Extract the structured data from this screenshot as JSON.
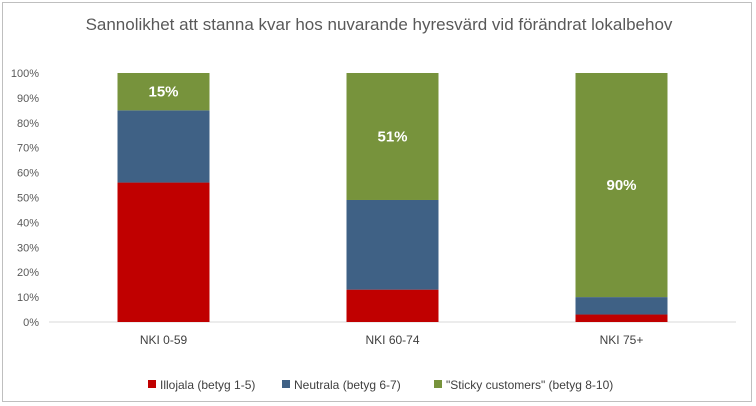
{
  "chart_data": {
    "type": "bar",
    "stacked": true,
    "title": "Sannolikhet att stanna kvar hos nuvarande hyresvärd vid förändrat lokalbehov",
    "categories": [
      "NKI 0-59",
      "NKI 60-74",
      "NKI 75+"
    ],
    "series": [
      {
        "name": "Illojala (betyg 1-5)",
        "color": "#c00000",
        "values": [
          56,
          13,
          3
        ]
      },
      {
        "name": "Neutrala (betyg 6-7)",
        "color": "#3f6185",
        "values": [
          29,
          36,
          7
        ]
      },
      {
        "name": "\"Sticky customers\" (betyg 8-10)",
        "color": "#77933c",
        "values": [
          15,
          51,
          90
        ]
      }
    ],
    "data_labels": [
      "15%",
      "51%",
      "90%"
    ],
    "y_ticks": [
      "0%",
      "10%",
      "20%",
      "30%",
      "40%",
      "50%",
      "60%",
      "70%",
      "80%",
      "90%",
      "100%"
    ],
    "ylim": [
      0,
      100
    ],
    "grid": false,
    "legend_position": "bottom"
  }
}
